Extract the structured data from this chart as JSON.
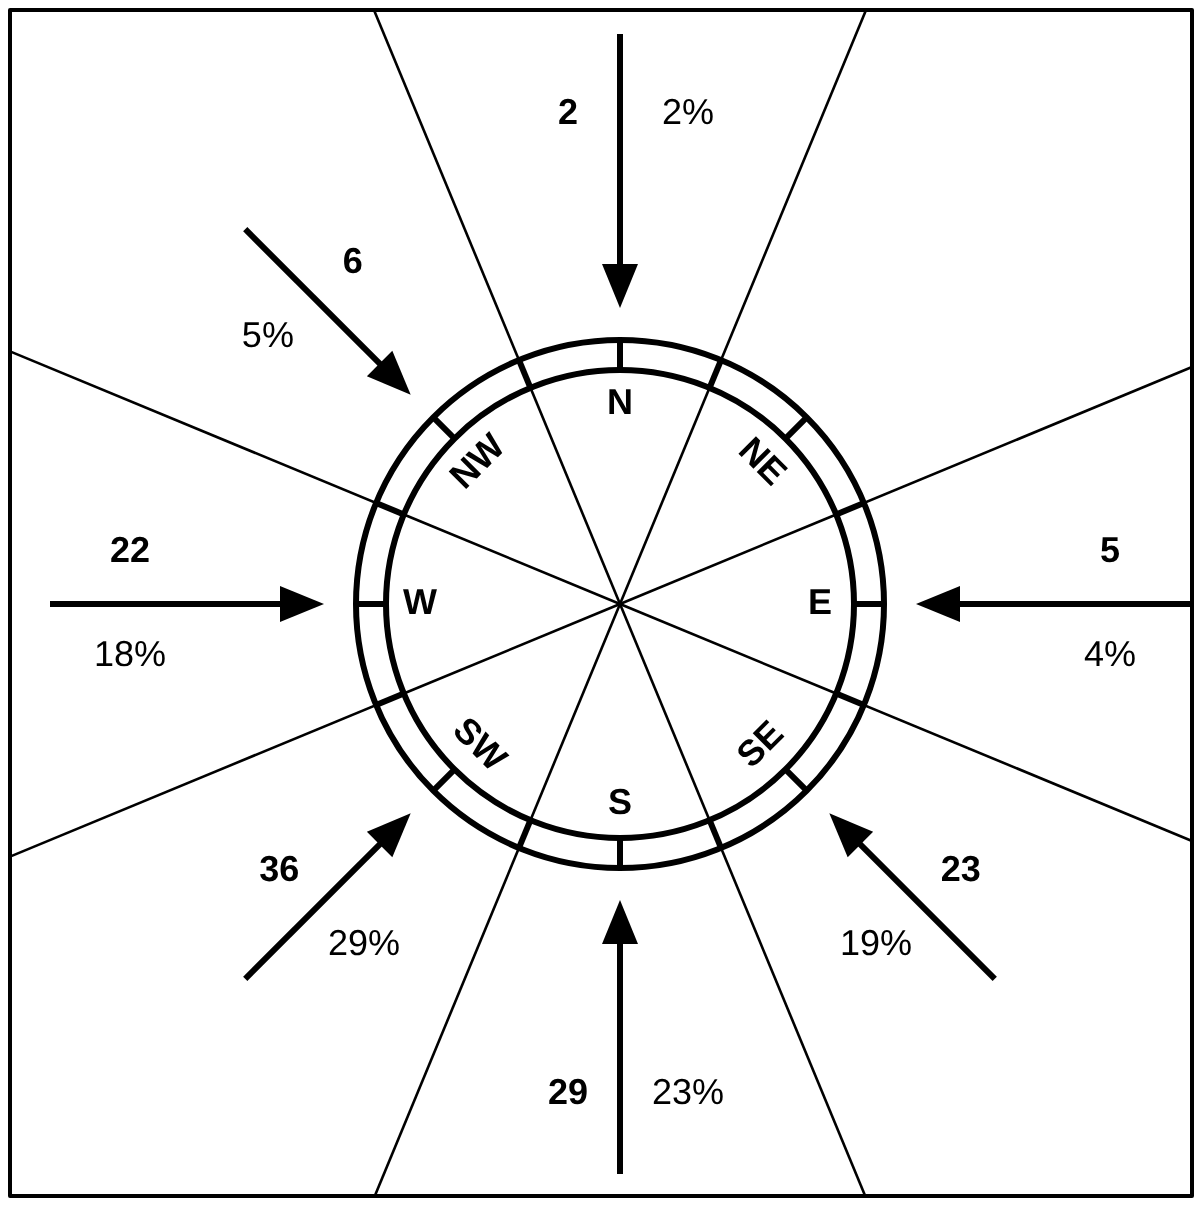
{
  "chart_data": {
    "type": "other",
    "categories": [
      "N",
      "NE",
      "E",
      "SE",
      "S",
      "SW",
      "W",
      "NW"
    ],
    "series": [
      {
        "values": [
          2,
          null,
          5,
          23,
          29,
          36,
          22,
          6
        ]
      },
      {
        "values": [
          2,
          null,
          4,
          19,
          23,
          29,
          18,
          5
        ],
        "value_labels": [
          "2%",
          null,
          "4%",
          "19%",
          "23%",
          "29%",
          "18%",
          "5%"
        ]
      }
    ],
    "data_labels": true
  }
}
